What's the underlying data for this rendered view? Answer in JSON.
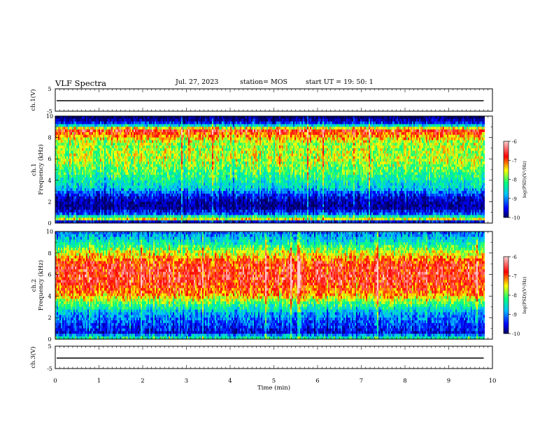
{
  "header": {
    "title": "VLF Spectra",
    "date": "Jul. 27, 2023",
    "station": "station= MOS",
    "start": "start UT =  19: 50: 1"
  },
  "chart_data": [
    {
      "type": "line",
      "panel": "ch1_voltage",
      "ylabel": "ch.1(V)",
      "yticks": [
        "5",
        "-5"
      ],
      "ylim": [
        -5,
        5
      ],
      "xlim": [
        0,
        10
      ],
      "x": [
        0,
        9.8
      ],
      "y": [
        0,
        0
      ]
    },
    {
      "type": "heatmap",
      "panel": "ch1_spectrogram",
      "ylabel": "ch.1 Frequency (kHz)",
      "yticks": [
        "0",
        "2",
        "4",
        "6",
        "8",
        "10"
      ],
      "ylim": [
        0,
        10
      ],
      "xlim": [
        0,
        10
      ],
      "colorbar": {
        "label": "log(PSD)(V²/Hz)",
        "ticks": [
          "-6",
          "-7",
          "-8",
          "-9",
          "-10"
        ],
        "range": [
          -10,
          -6
        ]
      },
      "band_profile": [
        {
          "freq_khz": 9.8,
          "log_psd": -10
        },
        {
          "freq_khz": 9.3,
          "log_psd": -9.2
        },
        {
          "freq_khz": 8.7,
          "log_psd": -6.6
        },
        {
          "freq_khz": 7.5,
          "log_psd": -7.6
        },
        {
          "freq_khz": 6.0,
          "log_psd": -7.5
        },
        {
          "freq_khz": 4.5,
          "log_psd": -8.0
        },
        {
          "freq_khz": 3.3,
          "log_psd": -8.5
        },
        {
          "freq_khz": 2.5,
          "log_psd": -9.4
        },
        {
          "freq_khz": 1.5,
          "log_psd": -9.9
        },
        {
          "freq_khz": 0.8,
          "log_psd": -9.0
        },
        {
          "freq_khz": 0.4,
          "log_psd": -7.2
        },
        {
          "freq_khz": 0.1,
          "log_psd": -9.6
        }
      ]
    },
    {
      "type": "heatmap",
      "panel": "ch2_spectrogram",
      "ylabel": "ch.2 Frequency (kHz)",
      "yticks": [
        "0",
        "2",
        "4",
        "6",
        "8",
        "10"
      ],
      "ylim": [
        0,
        10
      ],
      "xlim": [
        0,
        10
      ],
      "colorbar": {
        "label": "log(PSD)(V²/Hz)",
        "ticks": [
          "-6",
          "-7",
          "-8",
          "-9",
          "-10"
        ],
        "range": [
          -10,
          -6
        ]
      },
      "band_profile": [
        {
          "freq_khz": 9.8,
          "log_psd": -8.9
        },
        {
          "freq_khz": 9.0,
          "log_psd": -8.3
        },
        {
          "freq_khz": 8.2,
          "log_psd": -7.6
        },
        {
          "freq_khz": 7.0,
          "log_psd": -6.7
        },
        {
          "freq_khz": 5.5,
          "log_psd": -6.6
        },
        {
          "freq_khz": 4.2,
          "log_psd": -7.0
        },
        {
          "freq_khz": 3.2,
          "log_psd": -8.0
        },
        {
          "freq_khz": 2.4,
          "log_psd": -8.7
        },
        {
          "freq_khz": 1.5,
          "log_psd": -9.1
        },
        {
          "freq_khz": 0.6,
          "log_psd": -9.5
        },
        {
          "freq_khz": 0.2,
          "log_psd": -8.2
        }
      ]
    },
    {
      "type": "line",
      "panel": "ch3_voltage",
      "ylabel": "ch.3(V)",
      "yticks": [
        "5",
        "-5"
      ],
      "ylim": [
        -5,
        5
      ],
      "xlim": [
        0,
        10
      ],
      "x": [
        0,
        9.8
      ],
      "y": [
        0,
        0
      ]
    }
  ],
  "xaxis": {
    "label": "Time (min)",
    "ticks": [
      "0",
      "1",
      "2",
      "3",
      "4",
      "5",
      "6",
      "7",
      "8",
      "9",
      "10"
    ]
  },
  "data_end_min": 9.8,
  "colors": {
    "colormap": [
      "#000060",
      "#0000ff",
      "#00c0ff",
      "#00ff80",
      "#ffff00",
      "#ff0000",
      "#ffd0d0"
    ]
  }
}
